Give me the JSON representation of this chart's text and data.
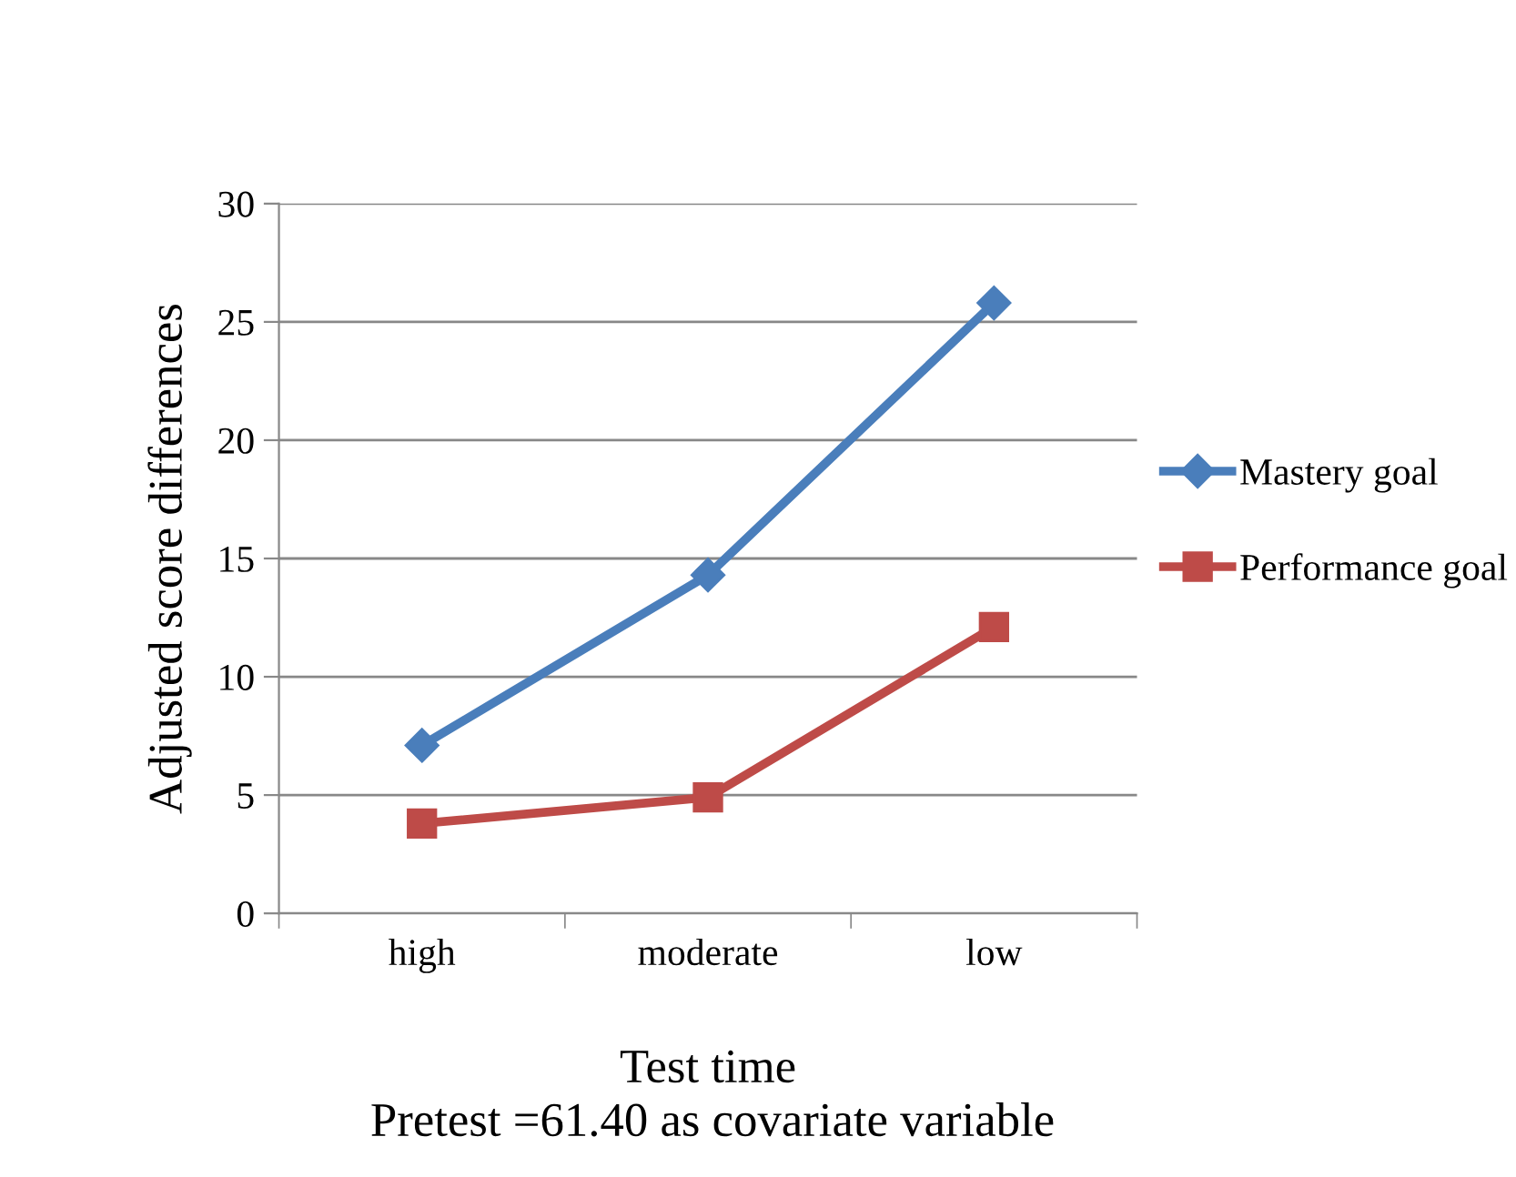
{
  "chart_data": {
    "type": "line",
    "xlabel": "Test time",
    "ylabel": "Adjusted score differences",
    "annotations": [
      "Pretest =61.40 as covariate variable"
    ],
    "categories": [
      "high",
      "moderate",
      "low"
    ],
    "series": [
      {
        "name": "Mastery goal",
        "color": "#4a7ebb",
        "marker": "diamond",
        "values": [
          7.1,
          14.3,
          25.8
        ]
      },
      {
        "name": "Performance goal",
        "color": "#be4b48",
        "marker": "square",
        "values": [
          3.8,
          4.9,
          12.1
        ]
      }
    ],
    "ylim": [
      0,
      30
    ],
    "yticks": [
      0,
      5,
      10,
      15,
      20,
      25,
      30
    ],
    "grid": "y",
    "legend": "right"
  }
}
